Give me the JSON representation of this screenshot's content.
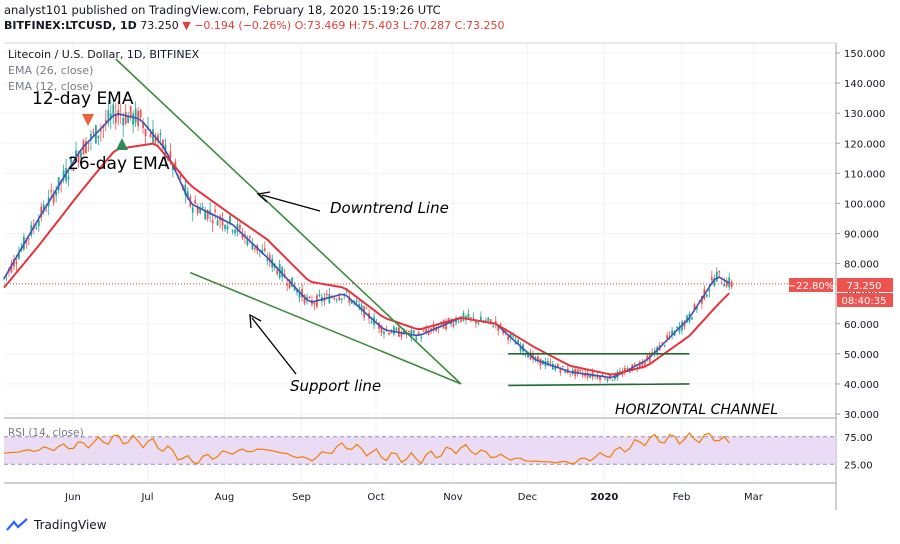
{
  "header": {
    "published_line": "analyst101 published on TradingView.com, February 18, 2020 15:19:26 UTC",
    "symbol": "BITFINEX:LTCUSD, 1D",
    "last": "73.250",
    "change": "−0.194 (−0.26%)",
    "ohlc": "O:73.469 H:75.403 L:70.287 C:73.250"
  },
  "legend": {
    "title": "Litecoin / U.S. Dollar, 1D, BITFINEX",
    "ema26": "EMA (26, close)",
    "ema12": "EMA (12, close)"
  },
  "annotations": {
    "ema12": "12-day EMA",
    "ema26": "26-day EMA",
    "downtrend": "Downtrend Line",
    "support": "Support line",
    "channel": "HORIZONTAL CHANNEL"
  },
  "price_tags": {
    "pct": "−22.80%",
    "price": "73.250",
    "countdown": "08:40:35"
  },
  "rsi_title": "RSI (14, close)",
  "branding": "TradingView",
  "colors": {
    "up": "#26a69a",
    "down": "#ef5350",
    "ema12": "#3f51b5",
    "ema26": "#e8323c",
    "trend": "#3b8c3b",
    "rsi": "#f57c00",
    "rsi_band": "#e7d6f5"
  },
  "chart_data": {
    "type": "line",
    "title": "Litecoin / U.S. Dollar, 1D, BITFINEX",
    "ylim": [
      30,
      150
    ],
    "y_ticks": [
      "150.000",
      "140.000",
      "130.000",
      "120.000",
      "110.000",
      "100.000",
      "90.000",
      "80.000",
      "70.000",
      "60.000",
      "50.000",
      "40.000",
      "30.000"
    ],
    "x_ticks": [
      "Jun",
      "Jul",
      "Aug",
      "Sep",
      "Oct",
      "Nov",
      "Dec",
      "2020",
      "Feb",
      "Mar"
    ],
    "x_start": "2019-05-01",
    "x_end": "2020-03-31",
    "series": [
      {
        "name": "EMA (12, close)",
        "dates": [
          "2019-05-01",
          "2019-05-15",
          "2019-06-01",
          "2019-06-15",
          "2019-06-25",
          "2019-07-05",
          "2019-07-15",
          "2019-08-01",
          "2019-08-15",
          "2019-09-01",
          "2019-09-15",
          "2019-10-01",
          "2019-10-15",
          "2019-11-01",
          "2019-11-15",
          "2019-12-01",
          "2019-12-15",
          "2020-01-01",
          "2020-01-15",
          "2020-02-01",
          "2020-02-12",
          "2020-02-18"
        ],
        "values": [
          75,
          95,
          118,
          130,
          128,
          118,
          100,
          93,
          82,
          67,
          70,
          58,
          56,
          62,
          60,
          48,
          44,
          42,
          48,
          62,
          76,
          73
        ]
      },
      {
        "name": "EMA (26, close)",
        "dates": [
          "2019-05-01",
          "2019-05-15",
          "2019-06-01",
          "2019-06-15",
          "2019-07-01",
          "2019-07-15",
          "2019-08-01",
          "2019-08-15",
          "2019-09-01",
          "2019-09-15",
          "2019-10-01",
          "2019-10-15",
          "2019-11-01",
          "2019-11-15",
          "2019-12-01",
          "2019-12-15",
          "2020-01-01",
          "2020-01-15",
          "2020-02-01",
          "2020-02-12",
          "2020-02-18"
        ],
        "values": [
          72,
          86,
          104,
          118,
          120,
          106,
          96,
          88,
          74,
          72,
          62,
          58,
          62,
          60,
          52,
          46,
          43,
          46,
          56,
          66,
          71
        ]
      },
      {
        "name": "RSI (14, close)",
        "dates": [
          "2019-05-01",
          "2019-06-01",
          "2019-06-15",
          "2019-07-01",
          "2019-07-15",
          "2019-08-01",
          "2019-08-15",
          "2019-09-01",
          "2019-09-15",
          "2019-10-01",
          "2019-10-15",
          "2019-11-01",
          "2019-11-15",
          "2019-12-01",
          "2019-12-15",
          "2020-01-01",
          "2020-01-15",
          "2020-02-01",
          "2020-02-12",
          "2020-02-18"
        ],
        "values": [
          45,
          60,
          72,
          62,
          30,
          48,
          52,
          33,
          60,
          40,
          35,
          55,
          40,
          30,
          28,
          45,
          70,
          72,
          75,
          60
        ]
      }
    ],
    "trendlines": [
      {
        "label": "Downtrend Line",
        "from": [
          "2019-06-15",
          148
        ],
        "to": [
          "2019-11-01",
          40
        ]
      },
      {
        "label": "Support line",
        "from": [
          "2019-07-15",
          77
        ],
        "to": [
          "2019-11-01",
          40
        ]
      },
      {
        "label": "HORIZONTAL CHANNEL",
        "from": [
          "2019-11-20",
          50
        ],
        "to": [
          "2020-02-01",
          50
        ]
      },
      {
        "label": "HORIZONTAL CHANNEL",
        "from": [
          "2019-11-20",
          39.5
        ],
        "to": [
          "2020-02-01",
          40
        ]
      }
    ],
    "last_price": 73.25,
    "rsi_ticks": [
      "75.00",
      "25.00"
    ],
    "rsi_ylim": [
      0,
      100
    ]
  }
}
